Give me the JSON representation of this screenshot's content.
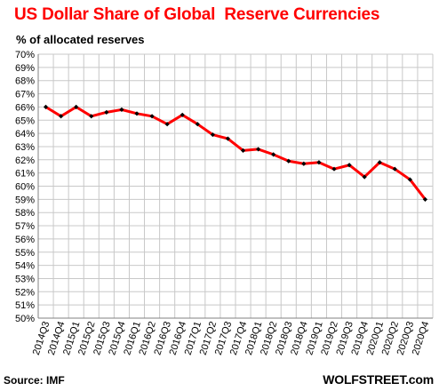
{
  "chart_data": {
    "type": "line",
    "title": "US Dollar Share of Global  Reserve Currencies",
    "subtitle": "% of allocated reserves",
    "categories": [
      "2014Q3",
      "2014Q4",
      "2015Q1",
      "2015Q2",
      "2015Q3",
      "2015Q4",
      "2016Q1",
      "2016Q2",
      "2016Q3",
      "2016Q4",
      "2017Q1",
      "2017Q2",
      "2017Q3",
      "2017Q4",
      "2018Q1",
      "2018Q2",
      "2018Q3",
      "2018Q4",
      "2019Q1",
      "2019Q2",
      "2019Q3",
      "2019Q4",
      "2020Q1",
      "2020Q2",
      "2020Q3",
      "2020Q4"
    ],
    "series": [
      {
        "values": [
          66.0,
          65.3,
          66.0,
          65.3,
          65.6,
          65.8,
          65.5,
          65.3,
          64.7,
          65.4,
          64.7,
          63.9,
          63.6,
          62.7,
          62.8,
          62.4,
          61.9,
          61.7,
          61.8,
          61.3,
          61.6,
          60.7,
          61.8,
          61.3,
          60.5,
          59.0
        ]
      }
    ],
    "yticks": [
      "50%",
      "51%",
      "52%",
      "53%",
      "54%",
      "55%",
      "56%",
      "57%",
      "58%",
      "59%",
      "60%",
      "61%",
      "62%",
      "63%",
      "64%",
      "65%",
      "66%",
      "67%",
      "68%",
      "69%",
      "70%"
    ],
    "ylim": [
      50,
      70
    ],
    "grid": true,
    "line_color": "#ff0000",
    "marker_color": "#000000",
    "source": "Source: IMF",
    "brand": "WOLFSTREET.com"
  }
}
